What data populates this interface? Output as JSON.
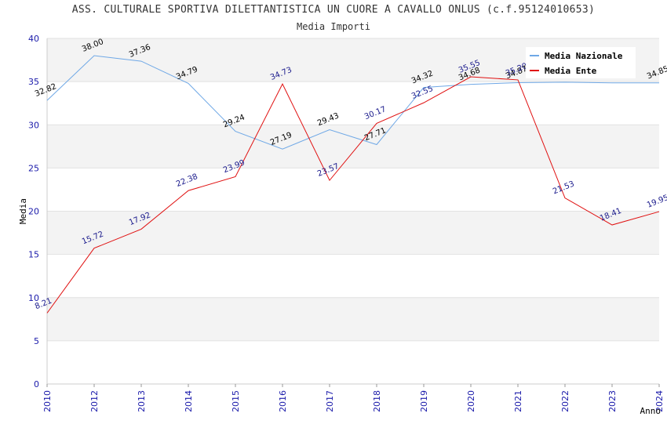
{
  "chart_data": {
    "type": "line",
    "title": "ASS. CULTURALE SPORTIVA DILETTANTISTICA UN CUORE A CAVALLO ONLUS (c.f.95124010653)",
    "subtitle": "Media Importi",
    "xlabel": "Anno",
    "ylabel": "Media",
    "ylim": [
      0,
      40
    ],
    "yticks": [
      0,
      5,
      10,
      15,
      20,
      25,
      30,
      35,
      40
    ],
    "grid": true,
    "legend_position": "top-right",
    "x": [
      "2010",
      "2012",
      "2013",
      "2014",
      "2015",
      "2016",
      "2017",
      "2018",
      "2019",
      "2020",
      "2021",
      "2022",
      "2023",
      "2024"
    ],
    "series": [
      {
        "name": "Media Nazionale",
        "color": "#6fa8e6",
        "values": [
          32.82,
          38.0,
          37.36,
          34.79,
          29.24,
          27.19,
          29.43,
          27.71,
          34.32,
          34.68,
          34.87,
          34.93,
          34.85,
          34.85
        ],
        "labels": [
          "32.82",
          "38.00",
          "37.36",
          "34.79",
          "29.24",
          "27.19",
          "29.43",
          "27.71",
          "34.32",
          "34.68",
          "34.87",
          "",
          "",
          "34.85"
        ]
      },
      {
        "name": "Media Ente",
        "color": "#e01010",
        "values": [
          8.21,
          15.72,
          17.92,
          22.38,
          23.99,
          34.73,
          23.57,
          30.17,
          32.55,
          35.55,
          35.2,
          21.53,
          18.41,
          19.95
        ],
        "labels": [
          "8.21",
          "15.72",
          "17.92",
          "22.38",
          "23.99",
          "34.73",
          "23.57",
          "30.17",
          "32.55",
          "35.55",
          "35.20",
          "21.53",
          "18.41",
          "19.95"
        ]
      }
    ]
  }
}
